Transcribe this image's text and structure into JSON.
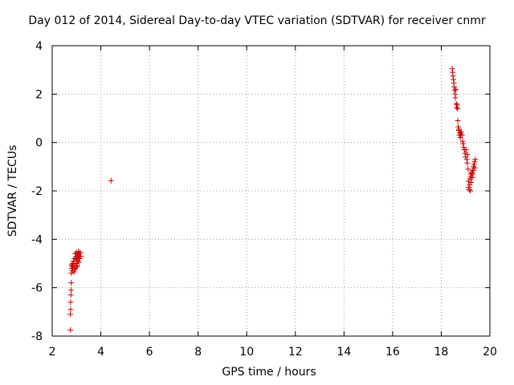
{
  "chart_data": {
    "type": "scatter",
    "title": "Day 012 of 2014, Sidereal Day-to-day VTEC variation (SDTVAR) for receiver cnmr",
    "xlabel": "GPS time / hours",
    "ylabel": "SDTVAR / TECUs",
    "xlim": [
      2,
      20
    ],
    "ylim": [
      -8,
      4
    ],
    "xticks": [
      2,
      4,
      6,
      8,
      10,
      12,
      14,
      16,
      18,
      20
    ],
    "yticks": [
      -8,
      -6,
      -4,
      -2,
      0,
      2,
      4
    ],
    "grid": true,
    "marker": "+",
    "color": "#cc0000",
    "series": [
      {
        "name": "SDTVAR",
        "x": [
          2.75,
          2.75,
          2.76,
          2.76,
          2.77,
          2.78,
          2.78,
          2.79,
          2.8,
          2.8,
          2.82,
          2.83,
          2.85,
          2.86,
          2.88,
          2.9,
          2.92,
          2.93,
          2.95,
          2.97,
          2.98,
          3.0,
          3.0,
          3.02,
          3.03,
          3.05,
          3.05,
          3.07,
          3.08,
          3.1,
          3.1,
          3.12,
          3.13,
          3.15,
          3.17,
          2.9,
          2.95,
          3.0,
          3.05,
          4.42,
          18.45,
          18.47,
          18.48,
          18.5,
          18.52,
          18.53,
          18.55,
          18.57,
          18.58,
          18.6,
          18.62,
          18.63,
          18.65,
          18.67,
          18.68,
          18.7,
          18.72,
          18.73,
          18.75,
          18.77,
          18.78,
          18.8,
          18.82,
          18.85,
          18.88,
          18.9,
          18.92,
          18.95,
          18.98,
          19.0,
          19.02,
          19.05,
          19.07,
          19.08,
          19.1,
          19.12,
          19.13,
          19.15,
          19.17,
          19.18,
          19.2,
          19.2,
          19.22,
          19.23,
          19.25,
          19.27,
          19.28,
          19.3,
          19.32,
          19.33,
          19.35,
          19.37,
          19.38,
          19.4
        ],
        "y": [
          -7.75,
          -7.1,
          -6.9,
          -6.6,
          -6.3,
          -6.1,
          -5.8,
          -5.4,
          -5.2,
          -5.05,
          -5.1,
          -5.3,
          -5.0,
          -5.15,
          -4.9,
          -5.05,
          -4.8,
          -5.2,
          -4.6,
          -4.75,
          -5.0,
          -4.55,
          -4.85,
          -4.7,
          -5.1,
          -4.6,
          -4.9,
          -4.75,
          -4.5,
          -4.7,
          -4.95,
          -4.6,
          -4.8,
          -4.55,
          -4.7,
          -5.35,
          -5.25,
          -5.15,
          -4.65,
          -1.58,
          3.05,
          2.9,
          2.75,
          2.6,
          2.45,
          2.3,
          2.15,
          2.0,
          1.85,
          2.2,
          1.6,
          1.45,
          1.55,
          1.4,
          0.9,
          0.65,
          0.5,
          0.55,
          0.3,
          0.4,
          0.2,
          0.35,
          0.45,
          0.3,
          0.05,
          -0.05,
          -0.2,
          -0.3,
          -0.45,
          -0.6,
          -0.3,
          -0.7,
          -0.85,
          -0.5,
          -1.1,
          -1.6,
          -1.85,
          -1.95,
          -1.75,
          -1.5,
          -1.3,
          -2.0,
          -1.4,
          -1.65,
          -1.25,
          -1.45,
          -1.15,
          -1.3,
          -1.0,
          -1.15,
          -0.9,
          -0.8,
          -1.05,
          -0.7
        ]
      }
    ]
  }
}
